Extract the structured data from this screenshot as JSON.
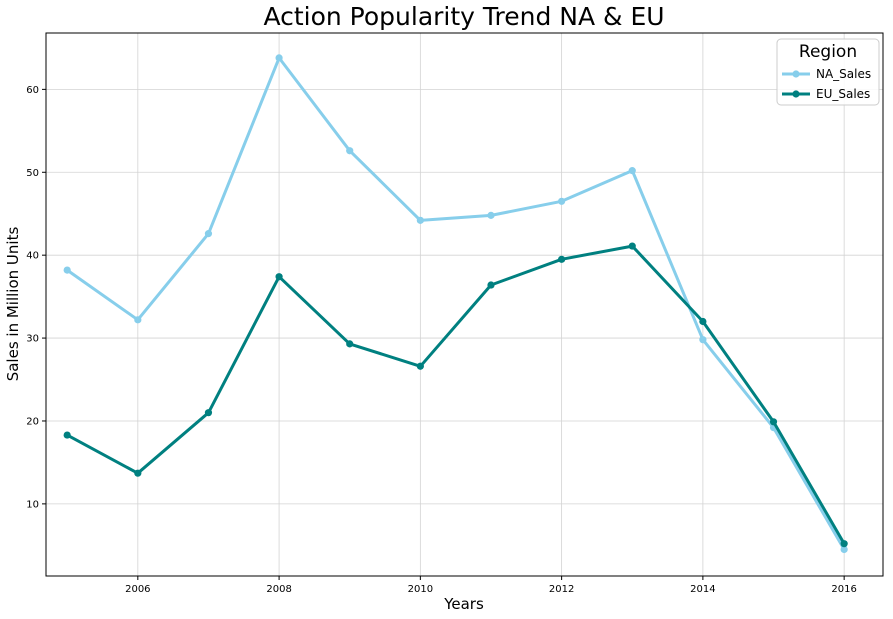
{
  "chart_data": {
    "type": "line",
    "title": "Action Popularity Trend NA & EU",
    "xlabel": "Years",
    "ylabel": "Sales in Million Units",
    "x": [
      2005,
      2006,
      2007,
      2008,
      2009,
      2010,
      2011,
      2012,
      2013,
      2014,
      2015,
      2016
    ],
    "xlim": [
      2004.7,
      2016.55
    ],
    "ylim": [
      1.3,
      66.8
    ],
    "xticks": [
      2006,
      2008,
      2010,
      2012,
      2014,
      2016
    ],
    "yticks": [
      10,
      20,
      30,
      40,
      50,
      60
    ],
    "grid": true,
    "legend": {
      "title": "Region",
      "placement": "top-right"
    },
    "series": [
      {
        "name": "NA_Sales",
        "color": "#87ceeb",
        "values": [
          38.2,
          32.2,
          42.6,
          63.8,
          52.6,
          44.2,
          44.8,
          46.5,
          50.2,
          29.8,
          19.2,
          4.5
        ]
      },
      {
        "name": "EU_Sales",
        "color": "#008080",
        "values": [
          18.3,
          13.7,
          21.0,
          37.4,
          29.3,
          26.6,
          36.4,
          39.5,
          41.1,
          32.0,
          19.9,
          5.2
        ]
      }
    ]
  }
}
